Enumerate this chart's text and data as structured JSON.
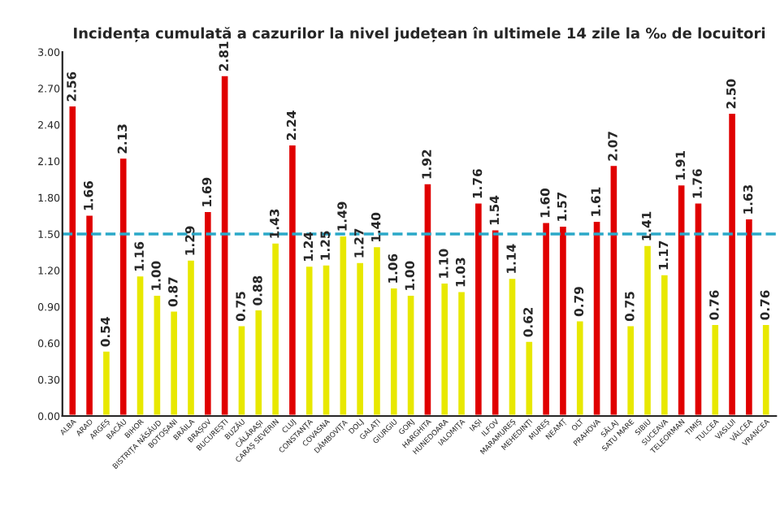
{
  "chart_data": {
    "type": "bar",
    "title": "Incidența cumulată a cazurilor la nivel județean în ultimele 14 zile la ‰ de locuitori",
    "categories": [
      "ALBA",
      "ARAD",
      "ARGEȘ",
      "BACĂU",
      "BIHOR",
      "BISTRIȚA NĂSĂUD",
      "BOTOȘANI",
      "BRĂILA",
      "BRAȘOV",
      "BUCUREȘTI",
      "BUZĂU",
      "CĂLĂRAȘI",
      "CARAȘ SEVERIN",
      "CLUJ",
      "CONSTANȚA",
      "COVASNA",
      "DÂMBOVIȚA",
      "DOLJ",
      "GALAȚI",
      "GIURGIU",
      "GORJ",
      "HARGHITA",
      "HUNEDOARA",
      "IALOMIȚA",
      "IAȘI",
      "ILFOV",
      "MARAMUREȘ",
      "MEHEDINȚI",
      "MUREȘ",
      "NEAMȚ",
      "OLT",
      "PRAHOVA",
      "SĂLAJ",
      "SATU MARE",
      "SIBIU",
      "SUCEAVA",
      "TELEORMAN",
      "TIMIȘ",
      "TULCEA",
      "VASLUI",
      "VÂLCEA",
      "VRANCEA"
    ],
    "values": [
      2.56,
      1.66,
      0.54,
      2.13,
      1.16,
      1.0,
      0.87,
      1.29,
      1.69,
      2.81,
      0.75,
      0.88,
      1.43,
      2.24,
      1.24,
      1.25,
      1.49,
      1.27,
      1.4,
      1.06,
      1.0,
      1.92,
      1.1,
      1.03,
      1.76,
      1.54,
      1.14,
      0.62,
      1.6,
      1.57,
      0.79,
      1.61,
      2.07,
      0.75,
      1.41,
      1.17,
      1.91,
      1.76,
      0.76,
      2.5,
      1.63,
      0.76
    ],
    "colors": [
      "#e00000",
      "#e00000",
      "#e8e800",
      "#e00000",
      "#e8e800",
      "#e8e800",
      "#e8e800",
      "#e8e800",
      "#e00000",
      "#e00000",
      "#e8e800",
      "#e8e800",
      "#e8e800",
      "#e00000",
      "#e8e800",
      "#e8e800",
      "#e8e800",
      "#e8e800",
      "#e8e800",
      "#e8e800",
      "#e8e800",
      "#e00000",
      "#e8e800",
      "#e8e800",
      "#e00000",
      "#e00000",
      "#e8e800",
      "#e8e800",
      "#e00000",
      "#e00000",
      "#e8e800",
      "#e00000",
      "#e00000",
      "#e8e800",
      "#e8e800",
      "#e8e800",
      "#e00000",
      "#e00000",
      "#e8e800",
      "#e00000",
      "#e00000",
      "#e8e800"
    ],
    "value_labels": [
      "2.56",
      "1.66",
      "0.54",
      "2.13",
      "1.16",
      "1.00",
      "0.87",
      "1.29",
      "1.69",
      "2.81",
      "0.75",
      "0.88",
      "1.43",
      "2.24",
      "1.24",
      "1.25",
      "1.49",
      "1.27",
      "1.40",
      "1.06",
      "1.00",
      "1.92",
      "1.10",
      "1.03",
      "1.76",
      "1.54",
      "1.14",
      "0.62",
      "1.60",
      "1.57",
      "0.79",
      "1.61",
      "2.07",
      "0.75",
      "1.41",
      "1.17",
      "1.91",
      "1.76",
      "0.76",
      "2.50",
      "1.63",
      "0.76"
    ],
    "ylim": [
      0,
      3.0
    ],
    "yticks": [
      {
        "value": 0,
        "label": "0.00"
      },
      {
        "value": 0.3,
        "label": "0.30"
      },
      {
        "value": 0.6,
        "label": "0.60"
      },
      {
        "value": 0.9,
        "label": "0.90"
      },
      {
        "value": 1.2,
        "label": "1.20"
      },
      {
        "value": 1.5,
        "label": "1.50"
      },
      {
        "value": 1.8,
        "label": "1.80"
      },
      {
        "value": 2.1,
        "label": "2.10"
      },
      {
        "value": 2.4,
        "label": "2.40"
      },
      {
        "value": 2.7,
        "label": "2.70"
      },
      {
        "value": 3.0,
        "label": "3.00"
      }
    ],
    "ref_lines": [
      {
        "axis": "y",
        "value": 1.5,
        "label": null,
        "color": "#2aa8c8",
        "line_style": "dashed"
      }
    ],
    "grid": false
  }
}
